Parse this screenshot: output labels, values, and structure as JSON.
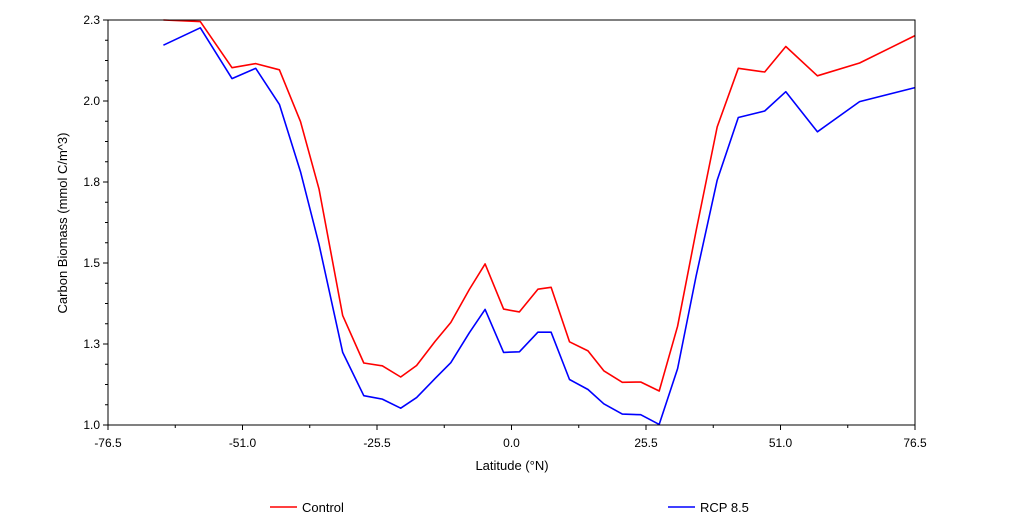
{
  "chart_data": {
    "type": "line",
    "title": "",
    "xlabel": "Latitude (°N)",
    "ylabel": "Carbon Biomass (mmol C/m^3)",
    "xlim": [
      -76.5,
      76.5
    ],
    "ylim": [
      1.0,
      2.3
    ],
    "xticks": [
      -76.5,
      -51.0,
      -25.5,
      0.0,
      25.5,
      51.0,
      76.5
    ],
    "xtick_labels": [
      "-76.5",
      "-51.0",
      "-25.5",
      "0.0",
      "25.5",
      "51.0",
      "76.5"
    ],
    "yticks": [
      1.0,
      1.26,
      1.52,
      1.78,
      2.04,
      2.3
    ],
    "ytick_labels": [
      "1.0",
      "1.3",
      "1.5",
      "1.8",
      "2.0",
      "2.3"
    ],
    "grid": false,
    "legend_position": "bottom",
    "x": [
      -66,
      -59,
      -53,
      -48.5,
      -44,
      -40,
      -36.5,
      -32,
      -28,
      -24.5,
      -21,
      -18,
      -14.5,
      -11.5,
      -8,
      -5,
      -1.5,
      1.5,
      5,
      7.5,
      11,
      14.5,
      17.5,
      21,
      24.5,
      28,
      31.5,
      35,
      39,
      43,
      48,
      52,
      58,
      66,
      76.5
    ],
    "series": [
      {
        "name": "Control",
        "color": "#ff0000",
        "values": [
          2.3,
          2.295,
          2.147,
          2.16,
          2.14,
          1.974,
          1.758,
          1.351,
          1.199,
          1.19,
          1.154,
          1.191,
          1.268,
          1.329,
          1.435,
          1.517,
          1.372,
          1.363,
          1.436,
          1.442,
          1.267,
          1.238,
          1.174,
          1.137,
          1.138,
          1.109,
          1.317,
          1.623,
          1.957,
          2.145,
          2.133,
          2.215,
          2.121,
          2.162,
          2.25
        ]
      },
      {
        "name": "RCP 8.5",
        "color": "#0000ff",
        "values": [
          2.219,
          2.275,
          2.112,
          2.145,
          2.029,
          1.813,
          1.58,
          1.233,
          1.094,
          1.083,
          1.054,
          1.088,
          1.149,
          1.2,
          1.296,
          1.371,
          1.233,
          1.235,
          1.298,
          1.298,
          1.146,
          1.114,
          1.068,
          1.035,
          1.033,
          1.002,
          1.181,
          1.478,
          1.786,
          1.987,
          2.008,
          2.07,
          1.941,
          2.038,
          2.083
        ]
      }
    ]
  }
}
